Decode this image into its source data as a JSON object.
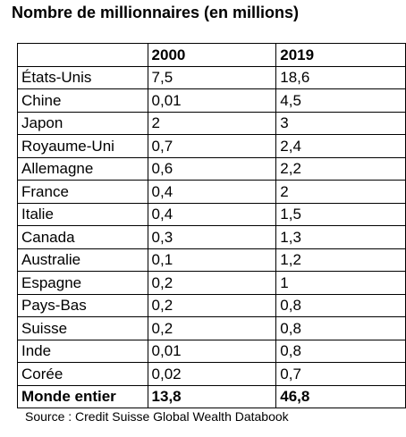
{
  "title": "Nombre de millionnaires (en millions)",
  "headers": [
    "",
    "2000",
    "2019"
  ],
  "rows": [
    {
      "country": "États-Unis",
      "y2000": "7,5",
      "y2019": "18,6"
    },
    {
      "country": "Chine",
      "y2000": "0,01",
      "y2019": "4,5"
    },
    {
      "country": "Japon",
      "y2000": "2",
      "y2019": "3"
    },
    {
      "country": "Royaume-Uni",
      "y2000": "0,7",
      "y2019": "2,4"
    },
    {
      "country": "Allemagne",
      "y2000": "0,6",
      "y2019": "2,2"
    },
    {
      "country": "France",
      "y2000": "0,4",
      "y2019": "2"
    },
    {
      "country": "Italie",
      "y2000": "0,4",
      "y2019": "1,5"
    },
    {
      "country": "Canada",
      "y2000": "0,3",
      "y2019": "1,3"
    },
    {
      "country": "Australie",
      "y2000": "0,1",
      "y2019": "1,2"
    },
    {
      "country": "Espagne",
      "y2000": "0,2",
      "y2019": "1"
    },
    {
      "country": "Pays-Bas",
      "y2000": "0,2",
      "y2019": "0,8"
    },
    {
      "country": "Suisse",
      "y2000": "0,2",
      "y2019": "0,8"
    },
    {
      "country": "Inde",
      "y2000": "0,01",
      "y2019": "0,8"
    },
    {
      "country": "Corée",
      "y2000": "0,02",
      "y2019": "0,7"
    }
  ],
  "total": {
    "country": "Monde entier",
    "y2000": "13,8",
    "y2019": "46,8"
  },
  "source": "Source : Credit Suisse Global Wealth Databook"
}
